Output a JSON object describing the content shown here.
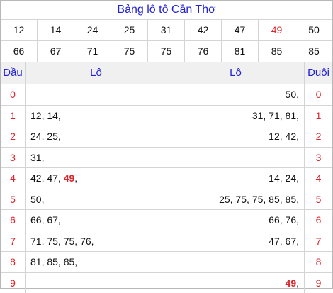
{
  "title": "Bảng lô tô Cần Thơ",
  "numbers": [
    {
      "v": "12",
      "hl": false
    },
    {
      "v": "14",
      "hl": false
    },
    {
      "v": "24",
      "hl": false
    },
    {
      "v": "25",
      "hl": false
    },
    {
      "v": "31",
      "hl": false
    },
    {
      "v": "42",
      "hl": false
    },
    {
      "v": "47",
      "hl": false
    },
    {
      "v": "49",
      "hl": true
    },
    {
      "v": "50",
      "hl": false
    },
    {
      "v": "66",
      "hl": false
    },
    {
      "v": "67",
      "hl": false
    },
    {
      "v": "71",
      "hl": false
    },
    {
      "v": "75",
      "hl": false
    },
    {
      "v": "75",
      "hl": false
    },
    {
      "v": "76",
      "hl": false
    },
    {
      "v": "81",
      "hl": false
    },
    {
      "v": "85",
      "hl": false
    },
    {
      "v": "85",
      "hl": false
    }
  ],
  "headers": {
    "dau": "Đầu",
    "lo_left": "Lô",
    "lo_right": "Lô",
    "duoi": "Đuôi"
  },
  "highlight_color": "#d9262c",
  "rows": [
    {
      "digit": "0",
      "left": [],
      "right": [
        {
          "t": "50,",
          "b": false
        }
      ]
    },
    {
      "digit": "1",
      "left": [
        {
          "t": "12,",
          "b": false
        },
        {
          "t": "14,",
          "b": false
        }
      ],
      "right": [
        {
          "t": "31,",
          "b": false
        },
        {
          "t": "71,",
          "b": false
        },
        {
          "t": "81,",
          "b": false
        }
      ]
    },
    {
      "digit": "2",
      "left": [
        {
          "t": "24,",
          "b": false
        },
        {
          "t": "25,",
          "b": false
        }
      ],
      "right": [
        {
          "t": "12,",
          "b": false
        },
        {
          "t": "42,",
          "b": false
        }
      ]
    },
    {
      "digit": "3",
      "left": [
        {
          "t": "31,",
          "b": false
        }
      ],
      "right": []
    },
    {
      "digit": "4",
      "left": [
        {
          "t": "42,",
          "b": false
        },
        {
          "t": "47,",
          "b": false
        },
        {
          "t": "49",
          "b": true
        },
        {
          "t": ",",
          "b": false
        }
      ],
      "right": [
        {
          "t": "14,",
          "b": false
        },
        {
          "t": "24,",
          "b": false
        }
      ]
    },
    {
      "digit": "5",
      "left": [
        {
          "t": "50,",
          "b": false
        }
      ],
      "right": [
        {
          "t": "25,",
          "b": false
        },
        {
          "t": "75,",
          "b": false
        },
        {
          "t": "75,",
          "b": false
        },
        {
          "t": "85,",
          "b": false
        },
        {
          "t": "85,",
          "b": false
        }
      ]
    },
    {
      "digit": "6",
      "left": [
        {
          "t": "66,",
          "b": false
        },
        {
          "t": "67,",
          "b": false
        }
      ],
      "right": [
        {
          "t": "66,",
          "b": false
        },
        {
          "t": "76,",
          "b": false
        }
      ]
    },
    {
      "digit": "7",
      "left": [
        {
          "t": "71,",
          "b": false
        },
        {
          "t": "75,",
          "b": false
        },
        {
          "t": "75,",
          "b": false
        },
        {
          "t": "76,",
          "b": false
        }
      ],
      "right": [
        {
          "t": "47,",
          "b": false
        },
        {
          "t": "67,",
          "b": false
        }
      ]
    },
    {
      "digit": "8",
      "left": [
        {
          "t": "81,",
          "b": false
        },
        {
          "t": "85,",
          "b": false
        },
        {
          "t": "85,",
          "b": false
        }
      ],
      "right": []
    },
    {
      "digit": "9",
      "left": [],
      "right": [
        {
          "t": "49",
          "b": true
        },
        {
          "t": ",",
          "b": false
        }
      ]
    }
  ]
}
